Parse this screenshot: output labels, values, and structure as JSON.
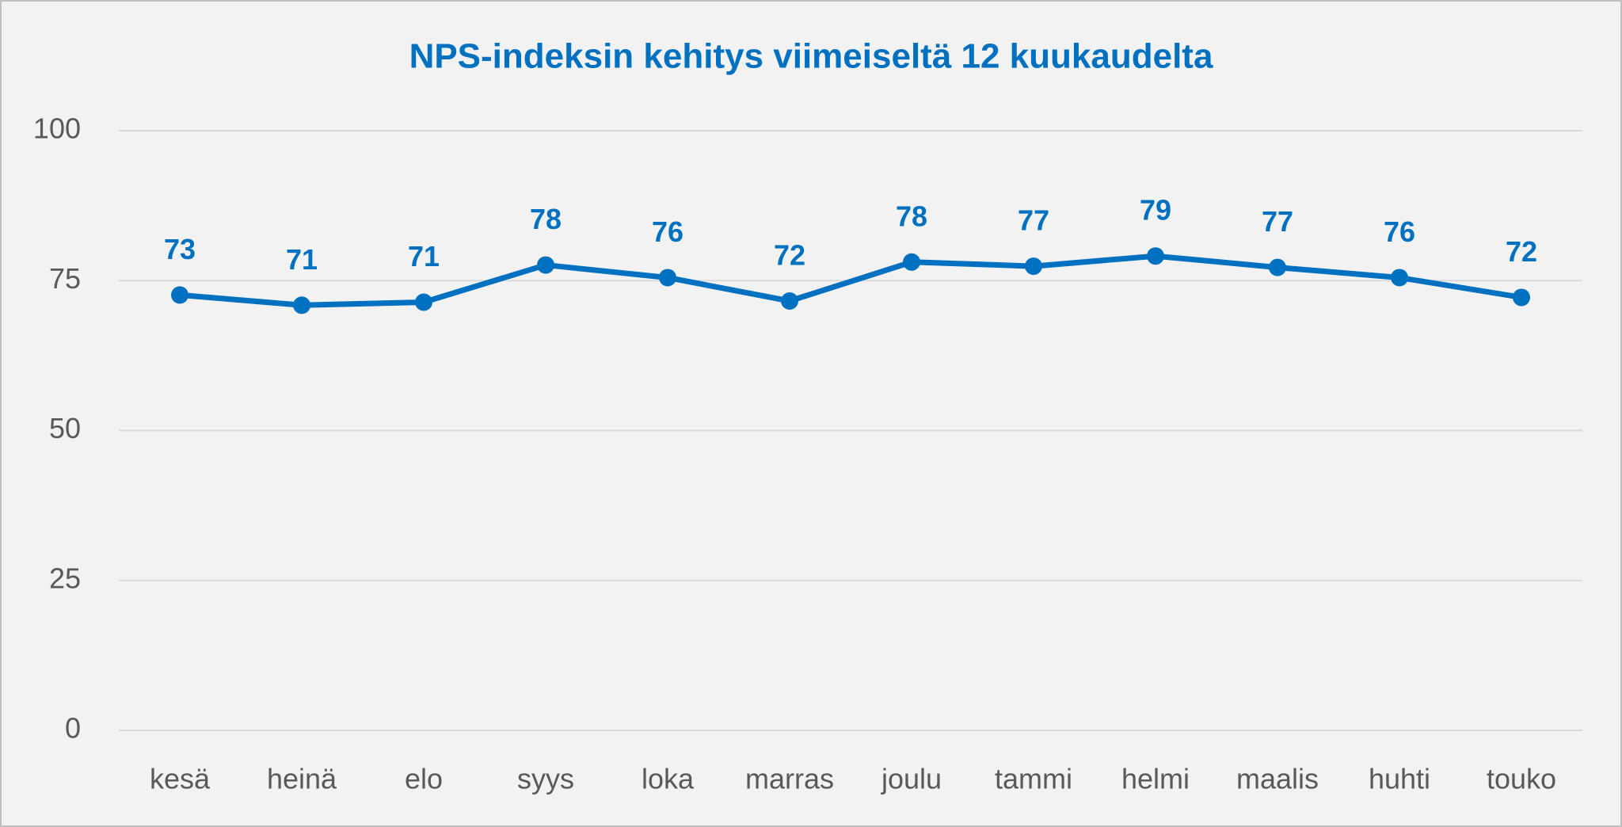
{
  "chart_data": {
    "type": "line",
    "title": "NPS-indeksin kehitys viimeiseltä 12 kuukaudelta",
    "categories": [
      "kesä",
      "heinä",
      "elo",
      "syys",
      "loka",
      "marras",
      "joulu",
      "tammi",
      "helmi",
      "maalis",
      "huhti",
      "touko"
    ],
    "series": [
      {
        "color": "#0070c0",
        "values": [
          72.6,
          70.9,
          71.4,
          77.6,
          75.5,
          71.6,
          78.1,
          77.4,
          79.1,
          77.2,
          75.5,
          72.2
        ],
        "value_labels": [
          "73",
          "71",
          "71",
          "78",
          "76",
          "72",
          "78",
          "77",
          "79",
          "77",
          "76",
          "72"
        ]
      }
    ],
    "ylim": [
      0,
      100
    ],
    "yticks": [
      0,
      25,
      50,
      75,
      100
    ],
    "grid": true
  }
}
